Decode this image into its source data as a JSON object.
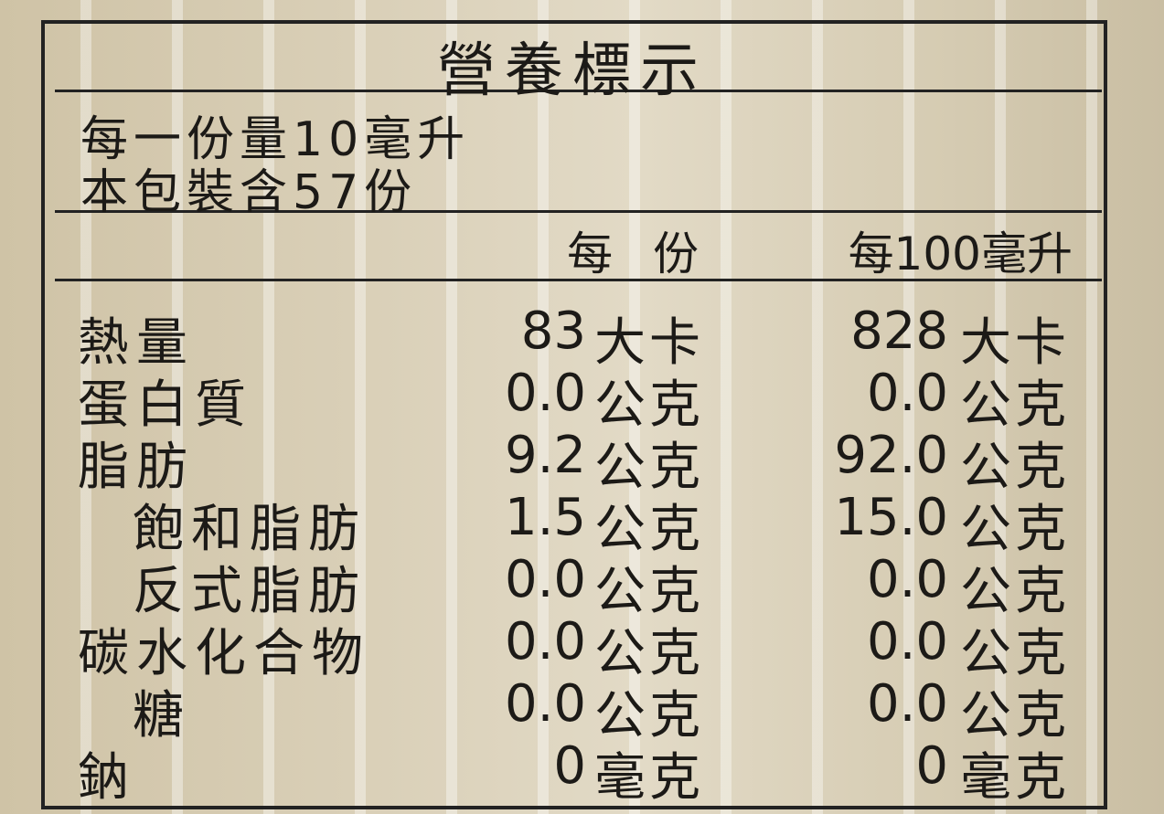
{
  "title": "營養標示",
  "serving_size": "每一份量10毫升",
  "servings_per_package": "本包裝含57份",
  "columns": {
    "per_serving": "每 份",
    "per_100": "每100毫升"
  },
  "rows": [
    {
      "label": "熱量",
      "indent": 0,
      "serving": "83",
      "serving_unit": "大卡",
      "per100": "828",
      "per100_unit": "大卡"
    },
    {
      "label": "蛋白質",
      "indent": 0,
      "serving": "0.0",
      "serving_unit": "公克",
      "per100": "0.0",
      "per100_unit": "公克"
    },
    {
      "label": "脂肪",
      "indent": 0,
      "serving": "9.2",
      "serving_unit": "公克",
      "per100": "92.0",
      "per100_unit": "公克"
    },
    {
      "label": "飽和脂肪",
      "indent": 1,
      "serving": "1.5",
      "serving_unit": "公克",
      "per100": "15.0",
      "per100_unit": "公克"
    },
    {
      "label": "反式脂肪",
      "indent": 1,
      "serving": "0.0",
      "serving_unit": "公克",
      "per100": "0.0",
      "per100_unit": "公克"
    },
    {
      "label": "碳水化合物",
      "indent": 0,
      "serving": "0.0",
      "serving_unit": "公克",
      "per100": "0.0",
      "per100_unit": "公克"
    },
    {
      "label": "糖",
      "indent": 1,
      "serving": "0.0",
      "serving_unit": "公克",
      "per100": "0.0",
      "per100_unit": "公克"
    },
    {
      "label": "鈉",
      "indent": 0,
      "serving": "0",
      "serving_unit": "毫克",
      "per100": "0",
      "per100_unit": "毫克"
    }
  ]
}
